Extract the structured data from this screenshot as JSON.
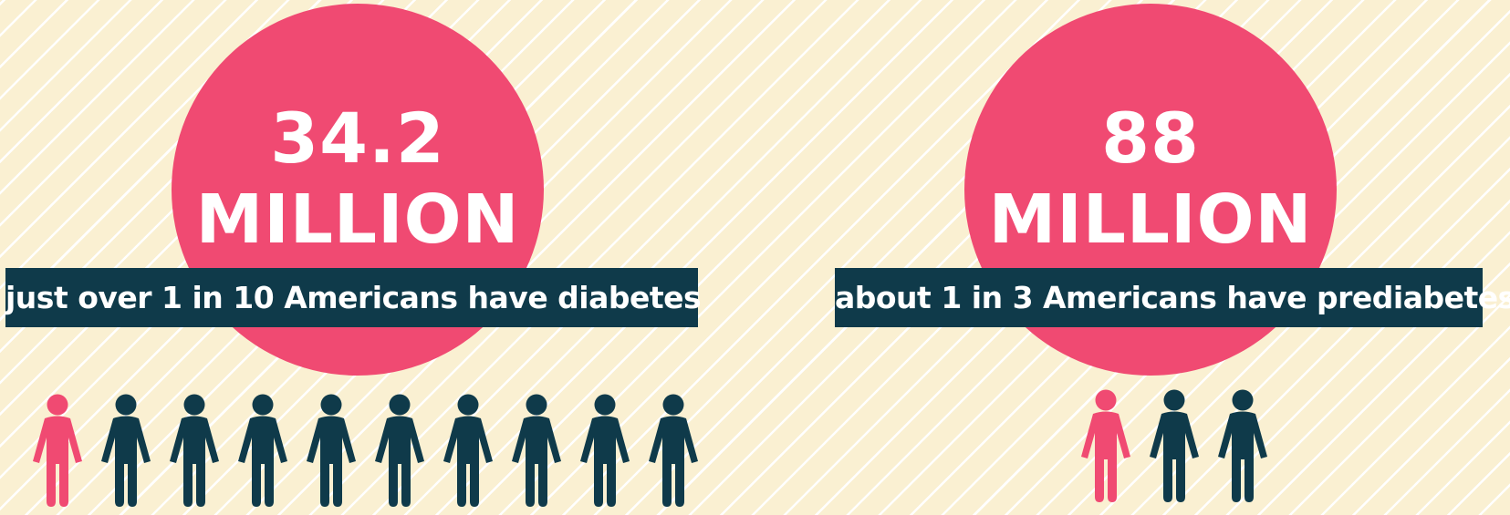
{
  "colors": {
    "background": "#faf0d2",
    "stripe": "#ffffff",
    "circle": "#f04a72",
    "banner": "#0f3a4a",
    "highlight_person": "#f04a72",
    "other_person": "#0f3a4a"
  },
  "left": {
    "number": "34.2",
    "unit": "MILLION",
    "caption": "just over 1 in 10 Americans have diabetes",
    "people_total": 10,
    "people_highlighted": 1
  },
  "right": {
    "number": "88",
    "unit": "MILLION",
    "caption": "about 1 in 3 Americans have prediabetes",
    "people_total": 3,
    "people_highlighted": 1
  },
  "icons": {
    "person": "person-icon"
  }
}
